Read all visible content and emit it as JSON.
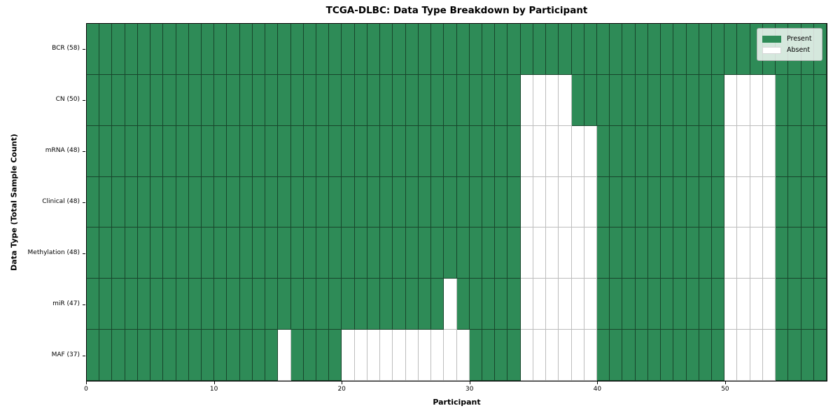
{
  "colors": {
    "present": "#2e8b57",
    "absent": "#ffffff"
  },
  "chart_data": {
    "type": "heatmap",
    "title": "TCGA-DLBC: Data Type Breakdown by Participant",
    "xlabel": "Participant",
    "ylabel": "Data Type (Total Sample Count)",
    "x_range": [
      0,
      58
    ],
    "n_participants": 58,
    "x_ticks": [
      0,
      10,
      20,
      30,
      40,
      50
    ],
    "grid": true,
    "legend_position": "upper right",
    "legend": [
      {
        "label": "Present",
        "color": "#2e8b57"
      },
      {
        "label": "Absent",
        "color": "#ffffff"
      }
    ],
    "value_encoding": {
      "present": 1,
      "absent": 0
    },
    "rows": [
      {
        "label": "BCR (58)",
        "data_type": "BCR",
        "total_samples": 58,
        "absent_participants": []
      },
      {
        "label": "CN (50)",
        "data_type": "CN",
        "total_samples": 50,
        "absent_participants": [
          34,
          35,
          36,
          37,
          50,
          51,
          52,
          53
        ]
      },
      {
        "label": "mRNA (48)",
        "data_type": "mRNA",
        "total_samples": 48,
        "absent_participants": [
          34,
          35,
          36,
          37,
          38,
          39,
          50,
          51,
          52,
          53
        ]
      },
      {
        "label": "Clinical (48)",
        "data_type": "Clinical",
        "total_samples": 48,
        "absent_participants": [
          34,
          35,
          36,
          37,
          38,
          39,
          50,
          51,
          52,
          53
        ]
      },
      {
        "label": "Methylation (48)",
        "data_type": "Methylation",
        "total_samples": 48,
        "absent_participants": [
          34,
          35,
          36,
          37,
          38,
          39,
          50,
          51,
          52,
          53
        ]
      },
      {
        "label": "miR (47)",
        "data_type": "miR",
        "total_samples": 47,
        "absent_participants": [
          28,
          34,
          35,
          36,
          37,
          38,
          39,
          50,
          51,
          52,
          53
        ]
      },
      {
        "label": "MAF (37)",
        "data_type": "MAF",
        "total_samples": 37,
        "absent_participants": [
          15,
          20,
          21,
          22,
          23,
          24,
          25,
          26,
          27,
          28,
          29,
          34,
          35,
          36,
          37,
          38,
          39,
          50,
          51,
          52,
          53
        ]
      }
    ]
  }
}
